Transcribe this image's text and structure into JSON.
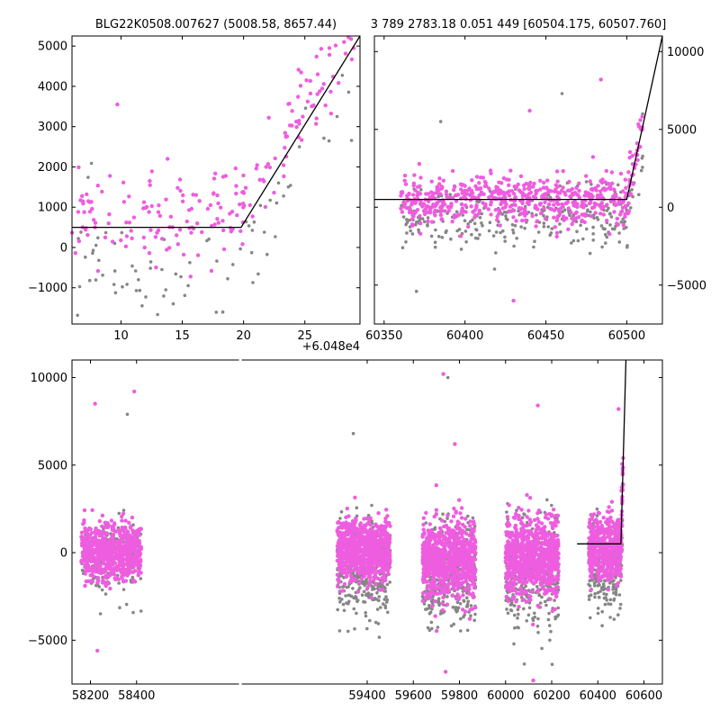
{
  "colors": {
    "pink": "#ee5ddf",
    "grey": "#868686",
    "line": "#000000"
  },
  "chart_data": [
    {
      "id": "top-left",
      "type": "scatter",
      "title": "BLG22K0508.007627 (5008.58, 8657.44)",
      "x_offset_label": "+6.048e4",
      "xlim": [
        6,
        29.5
      ],
      "ylim": [
        -1900,
        5250
      ],
      "xticks": [
        10,
        15,
        20,
        25
      ],
      "yticks": [
        -1000,
        0,
        1000,
        2000,
        3000,
        4000,
        5000
      ],
      "yaxis_side": "left",
      "model_line": [
        [
          6,
          500
        ],
        [
          19.8,
          500
        ],
        [
          29.5,
          5300
        ]
      ],
      "seed": 11,
      "segments": [
        {
          "x0": 6,
          "x1": 29,
          "n_pink": 200,
          "n_grey": 80,
          "pink_mean": 800,
          "pink_sd": 600,
          "grey_mean": -400,
          "grey_sd": 700,
          "follow_model": true
        }
      ],
      "outliers": [
        {
          "x": 9.7,
          "y": 3550,
          "s": "pink"
        },
        {
          "x": 28.2,
          "y": 5100,
          "s": "pink"
        },
        {
          "x": 13.8,
          "y": 2200,
          "s": "pink"
        }
      ]
    },
    {
      "id": "top-right",
      "type": "scatter",
      "title": "3 789 2783.18 0.051 449 [60504.175, 60507.760]",
      "xlim": [
        60344,
        60522
      ],
      "ylim": [
        -7500,
        11000
      ],
      "xticks": [
        60350,
        60400,
        60450,
        60500
      ],
      "yticks": [
        -5000,
        0,
        5000,
        10000
      ],
      "yaxis_side": "right",
      "model_line": [
        [
          60344,
          500
        ],
        [
          60500,
          500
        ],
        [
          60522,
          11000
        ]
      ],
      "seed": 23,
      "segments": [
        {
          "x0": 60360,
          "x1": 60510,
          "n_pink": 600,
          "n_grey": 280,
          "pink_mean": 500,
          "pink_sd": 800,
          "grey_mean": -700,
          "grey_sd": 900,
          "follow_model": true
        }
      ],
      "outliers": [
        {
          "x": 60484,
          "y": 8200,
          "s": "pink"
        },
        {
          "x": 60385,
          "y": 5500,
          "s": "grey"
        },
        {
          "x": 60460,
          "y": 7300,
          "s": "grey"
        },
        {
          "x": 60440,
          "y": 6200,
          "s": "pink"
        },
        {
          "x": 60430,
          "y": -6000,
          "s": "pink"
        },
        {
          "x": 60370,
          "y": -5400,
          "s": "grey"
        }
      ]
    },
    {
      "id": "bottom",
      "type": "scatter",
      "title": "",
      "xlim": [
        58120,
        60680
      ],
      "ylim": [
        -7500,
        11000
      ],
      "xticks": [
        58200,
        58400,
        59400,
        59600,
        59800,
        60000,
        60200,
        60400,
        60600
      ],
      "yticks": [
        -5000,
        0,
        5000,
        10000
      ],
      "yaxis_side": "left",
      "x_breaks": [
        {
          "from": 58440,
          "to": 59260
        }
      ],
      "model_line": [
        [
          60310,
          500
        ],
        [
          60500,
          500
        ],
        [
          60522,
          11000
        ]
      ],
      "seed": 37,
      "segments": [
        {
          "x0": 58160,
          "x1": 58420,
          "n_pink": 700,
          "n_grey": 150,
          "pink_mean": 0,
          "pink_sd": 800,
          "grey_mean": -500,
          "grey_sd": 1200,
          "follow_model": false
        },
        {
          "x0": 59270,
          "x1": 59500,
          "n_pink": 800,
          "n_grey": 350,
          "pink_mean": 100,
          "pink_sd": 900,
          "grey_mean": -1000,
          "grey_sd": 1300,
          "follow_model": false
        },
        {
          "x0": 59640,
          "x1": 59870,
          "n_pink": 800,
          "n_grey": 350,
          "pink_mean": -400,
          "pink_sd": 1100,
          "grey_mean": -1200,
          "grey_sd": 1400,
          "follow_model": false
        },
        {
          "x0": 60000,
          "x1": 60230,
          "n_pink": 800,
          "n_grey": 350,
          "pink_mean": -300,
          "pink_sd": 1100,
          "grey_mean": -1300,
          "grey_sd": 1500,
          "follow_model": false
        },
        {
          "x0": 60360,
          "x1": 60510,
          "n_pink": 500,
          "n_grey": 220,
          "pink_mean": 300,
          "pink_sd": 900,
          "grey_mean": -800,
          "grey_sd": 1200,
          "follow_model": true
        }
      ],
      "outliers": [
        {
          "x": 59730,
          "y": 10200,
          "s": "pink"
        },
        {
          "x": 59750,
          "y": 10000,
          "s": "grey"
        },
        {
          "x": 58390,
          "y": 9200,
          "s": "pink"
        },
        {
          "x": 58220,
          "y": 8500,
          "s": "pink"
        },
        {
          "x": 58360,
          "y": 7900,
          "s": "grey"
        },
        {
          "x": 60140,
          "y": 8400,
          "s": "pink"
        },
        {
          "x": 59340,
          "y": 6800,
          "s": "grey"
        },
        {
          "x": 60490,
          "y": 8200,
          "s": "pink"
        },
        {
          "x": 59780,
          "y": 6200,
          "s": "pink"
        },
        {
          "x": 59740,
          "y": -6800,
          "s": "pink"
        },
        {
          "x": 60120,
          "y": -7300,
          "s": "pink"
        },
        {
          "x": 58230,
          "y": -5600,
          "s": "pink"
        }
      ]
    }
  ]
}
